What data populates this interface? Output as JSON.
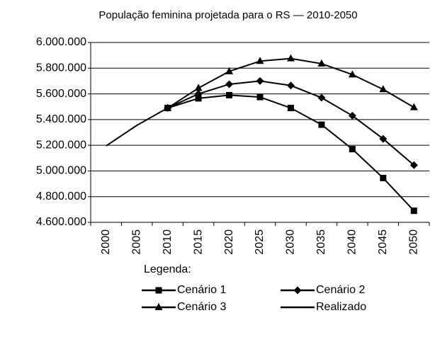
{
  "chart_data": {
    "type": "line",
    "title": "População feminina projetada para o RS — 2010-2050",
    "categories": [
      "2000",
      "2005",
      "2010",
      "2015",
      "2020",
      "2025",
      "2030",
      "2035",
      "2040",
      "2045",
      "2050"
    ],
    "series": [
      {
        "name": "Cenário 1",
        "color": "#000000",
        "marker": "square",
        "values": [
          null,
          null,
          5490000,
          5565000,
          5590000,
          5575000,
          5490000,
          5360000,
          5170000,
          4945000,
          4690000
        ]
      },
      {
        "name": "Cenário 2",
        "color": "#000000",
        "marker": "diamond",
        "values": [
          null,
          null,
          5490000,
          5600000,
          5675000,
          5700000,
          5665000,
          5570000,
          5430000,
          5250000,
          5045000
        ]
      },
      {
        "name": "Cenário 3",
        "color": "#000000",
        "marker": "triangle",
        "values": [
          null,
          null,
          5490000,
          5645000,
          5775000,
          5855000,
          5875000,
          5835000,
          5750000,
          5635000,
          5495000
        ]
      },
      {
        "name": "Realizado",
        "color": "#000000",
        "marker": "none",
        "values": [
          5195000,
          5355000,
          5490000,
          null,
          null,
          null,
          null,
          null,
          null,
          null,
          null
        ]
      }
    ],
    "ylim": [
      4600000,
      6000000
    ],
    "yticks": [
      {
        "value": 4600000,
        "label": "4.600.000"
      },
      {
        "value": 4800000,
        "label": "4.800.000"
      },
      {
        "value": 5000000,
        "label": "5.000.000"
      },
      {
        "value": 5200000,
        "label": "5.200.000"
      },
      {
        "value": 5400000,
        "label": "5.400.000"
      },
      {
        "value": 5600000,
        "label": "5.600.000"
      },
      {
        "value": 5800000,
        "label": "5.800.000"
      },
      {
        "value": 6000000,
        "label": "6.000.000"
      }
    ],
    "grid": true,
    "legend_title": "Legenda:",
    "legend": "bottom"
  }
}
